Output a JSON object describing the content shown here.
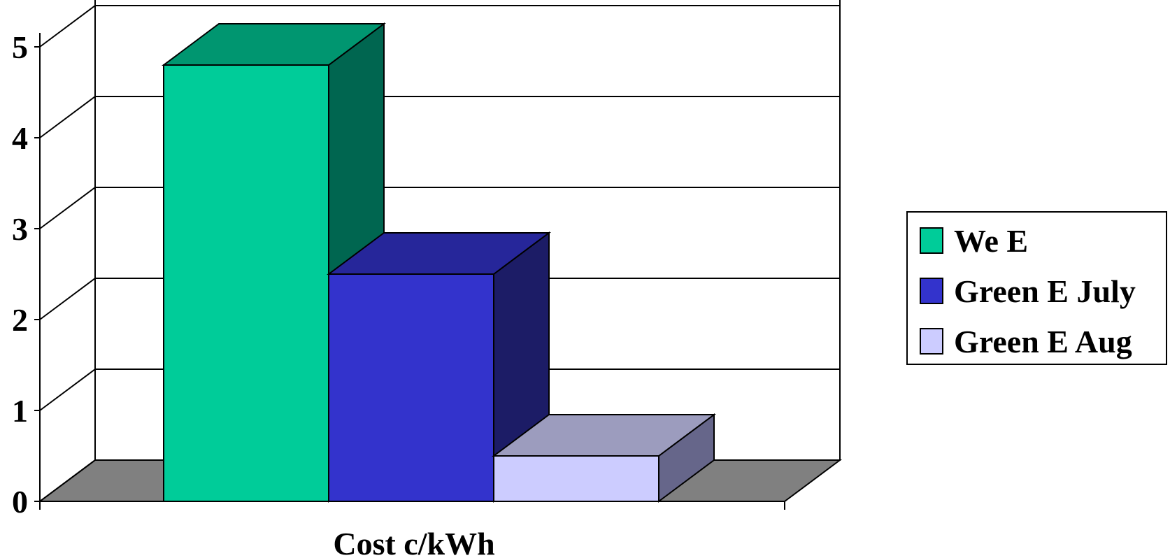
{
  "chart_data": {
    "type": "bar",
    "style": "3d-clustered-column",
    "categories": [
      "Cost  c/kWh"
    ],
    "xlabel": "Cost  c/kWh",
    "ylabel": "",
    "title": "",
    "ylim": [
      0,
      5
    ],
    "yticks": [
      "0",
      "1",
      "2",
      "3",
      "4",
      "5"
    ],
    "grid": true,
    "legend_position": "right",
    "series": [
      {
        "name": "We E",
        "values": [
          4.8
        ],
        "color": "#00CC99",
        "top_color": "#009670",
        "side_color": "#006650"
      },
      {
        "name": "Green E July",
        "values": [
          2.5
        ],
        "color": "#3333CC",
        "top_color": "#26269A",
        "side_color": "#1C1C66"
      },
      {
        "name": "Green E Aug",
        "values": [
          0.5
        ],
        "color": "#CCCCFF",
        "top_color": "#9C9CBE",
        "side_color": "#66668A"
      }
    ],
    "floor_color": "#808080"
  }
}
